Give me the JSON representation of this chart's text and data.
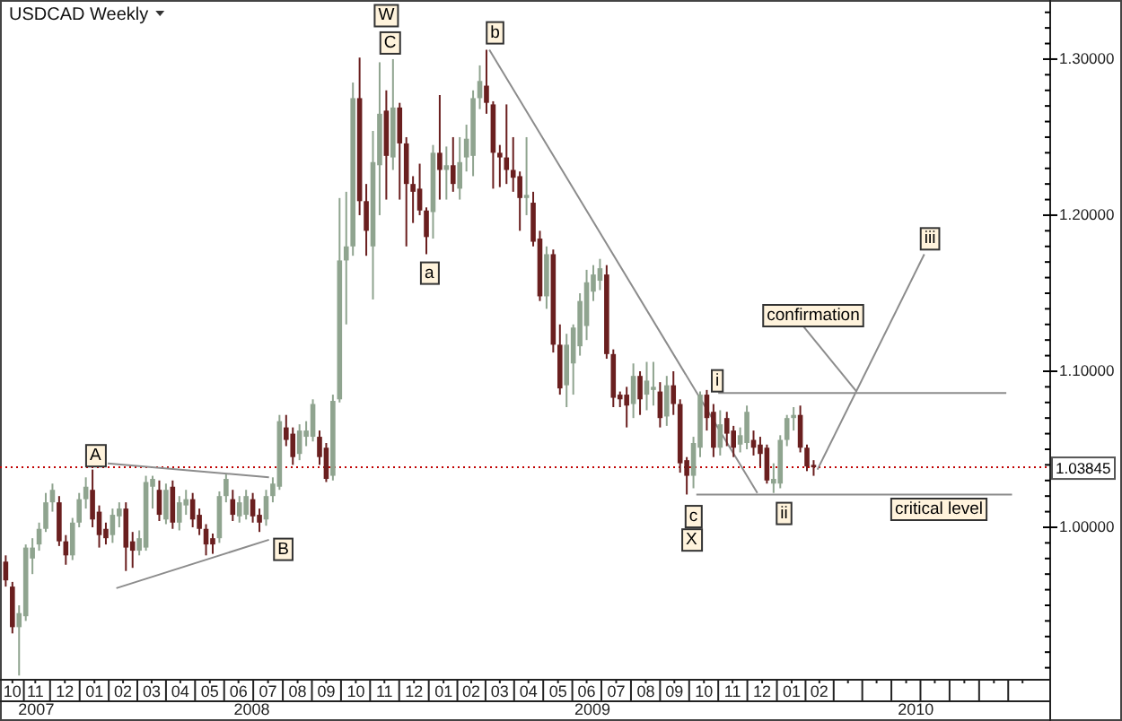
{
  "chart_data": {
    "type": "candlestick",
    "title": "USDCAD Weekly",
    "x": [
      "2007-10-15",
      "2007-10-22",
      "2007-10-29",
      "2007-11-05",
      "2007-11-12",
      "2007-11-19",
      "2007-11-26",
      "2007-12-03",
      "2007-12-10",
      "2007-12-17",
      "2007-12-24",
      "2007-12-31",
      "2008-01-07",
      "2008-01-14",
      "2008-01-21",
      "2008-01-28",
      "2008-02-04",
      "2008-02-11",
      "2008-02-18",
      "2008-02-25",
      "2008-03-03",
      "2008-03-10",
      "2008-03-17",
      "2008-03-24",
      "2008-03-31",
      "2008-04-07",
      "2008-04-14",
      "2008-04-21",
      "2008-04-28",
      "2008-05-05",
      "2008-05-12",
      "2008-05-19",
      "2008-05-26",
      "2008-06-02",
      "2008-06-09",
      "2008-06-16",
      "2008-06-23",
      "2008-06-30",
      "2008-07-07",
      "2008-07-14",
      "2008-07-21",
      "2008-07-28",
      "2008-08-04",
      "2008-08-11",
      "2008-08-18",
      "2008-08-25",
      "2008-09-01",
      "2008-09-08",
      "2008-09-15",
      "2008-09-22",
      "2008-09-29",
      "2008-10-06",
      "2008-10-13",
      "2008-10-20",
      "2008-10-27",
      "2008-11-03",
      "2008-11-10",
      "2008-11-17",
      "2008-11-24",
      "2008-12-01",
      "2008-12-08",
      "2008-12-15",
      "2008-12-22",
      "2008-12-29",
      "2009-01-05",
      "2009-01-12",
      "2009-01-19",
      "2009-01-26",
      "2009-02-02",
      "2009-02-09",
      "2009-02-16",
      "2009-02-23",
      "2009-03-02",
      "2009-03-09",
      "2009-03-16",
      "2009-03-23",
      "2009-03-30",
      "2009-04-06",
      "2009-04-13",
      "2009-04-20",
      "2009-04-27",
      "2009-05-04",
      "2009-05-11",
      "2009-05-18",
      "2009-05-25",
      "2009-06-01",
      "2009-06-08",
      "2009-06-15",
      "2009-06-22",
      "2009-06-29",
      "2009-07-06",
      "2009-07-13",
      "2009-07-20",
      "2009-07-27",
      "2009-08-03",
      "2009-08-10",
      "2009-08-17",
      "2009-08-24",
      "2009-08-31",
      "2009-09-07",
      "2009-09-14",
      "2009-09-21",
      "2009-09-28",
      "2009-10-05",
      "2009-10-12",
      "2009-10-19",
      "2009-10-26",
      "2009-11-02",
      "2009-11-09",
      "2009-11-16",
      "2009-11-23",
      "2009-11-30",
      "2009-12-07",
      "2009-12-14",
      "2009-12-21",
      "2009-12-28",
      "2010-01-04",
      "2010-01-11",
      "2010-01-18",
      "2010-01-25",
      "2010-02-01",
      "2010-02-08"
    ],
    "ohlc": [
      [
        0.978,
        0.982,
        0.962,
        0.966
      ],
      [
        0.962,
        0.965,
        0.932,
        0.936
      ],
      [
        0.936,
        0.95,
        0.905,
        0.945
      ],
      [
        0.943,
        0.989,
        0.94,
        0.987
      ],
      [
        0.98,
        0.993,
        0.97,
        0.987
      ],
      [
        0.989,
        1.003,
        0.985,
        0.999
      ],
      [
        0.999,
        1.022,
        0.997,
        1.016
      ],
      [
        1.016,
        1.028,
        1.01,
        1.024
      ],
      [
        1.016,
        1.02,
        0.988,
        0.991
      ],
      [
        0.991,
        0.995,
        0.976,
        0.982
      ],
      [
        0.982,
        1.006,
        0.979,
        1.003
      ],
      [
        1.003,
        1.022,
        1.0,
        1.018
      ],
      [
        1.018,
        1.032,
        1.012,
        1.026
      ],
      [
        1.024,
        1.037,
        1.0,
        1.005
      ],
      [
        1.01,
        1.014,
        0.987,
        0.995
      ],
      [
        0.999,
        1.003,
        0.989,
        0.993
      ],
      [
        0.995,
        1.012,
        0.99,
        1.008
      ],
      [
        1.007,
        1.016,
        1.0,
        1.012
      ],
      [
        1.012,
        1.016,
        0.972,
        0.987
      ],
      [
        0.991,
        0.997,
        0.974,
        0.985
      ],
      [
        0.985,
        0.998,
        0.982,
        0.993
      ],
      [
        0.987,
        1.033,
        0.985,
        1.029
      ],
      [
        1.026,
        1.033,
        1.012,
        1.031
      ],
      [
        1.024,
        1.03,
        1.004,
        1.008
      ],
      [
        1.005,
        1.028,
        1.002,
        1.024
      ],
      [
        1.026,
        1.03,
        0.999,
        1.003
      ],
      [
        1.003,
        1.02,
        0.998,
        1.016
      ],
      [
        1.014,
        1.024,
        1.008,
        1.018
      ],
      [
        1.018,
        1.022,
        1.0,
        1.005
      ],
      [
        1.008,
        1.012,
        0.995,
        0.999
      ],
      [
        0.999,
        1.002,
        0.982,
        0.989
      ],
      [
        0.993,
        0.996,
        0.983,
        0.989
      ],
      [
        0.993,
        1.023,
        0.99,
        1.02
      ],
      [
        1.02,
        1.034,
        1.016,
        1.031
      ],
      [
        1.018,
        1.024,
        1.004,
        1.008
      ],
      [
        1.007,
        1.02,
        1.003,
        1.016
      ],
      [
        1.008,
        1.024,
        1.005,
        1.02
      ],
      [
        1.018,
        1.022,
        1.003,
        1.007
      ],
      [
        1.008,
        1.012,
        0.997,
        1.003
      ],
      [
        1.005,
        1.024,
        1.001,
        1.02
      ],
      [
        1.02,
        1.032,
        1.016,
        1.028
      ],
      [
        1.026,
        1.072,
        1.024,
        1.068
      ],
      [
        1.064,
        1.072,
        1.052,
        1.056
      ],
      [
        1.06,
        1.064,
        1.04,
        1.045
      ],
      [
        1.047,
        1.066,
        1.043,
        1.062
      ],
      [
        1.058,
        1.068,
        1.052,
        1.062
      ],
      [
        1.058,
        1.082,
        1.055,
        1.079
      ],
      [
        1.058,
        1.062,
        1.04,
        1.045
      ],
      [
        1.051,
        1.054,
        1.029,
        1.031
      ],
      [
        1.033,
        1.085,
        1.03,
        1.081
      ],
      [
        1.082,
        1.211,
        1.08,
        1.171
      ],
      [
        1.171,
        1.215,
        1.13,
        1.18
      ],
      [
        1.18,
        1.285,
        1.174,
        1.275
      ],
      [
        1.275,
        1.301,
        1.2,
        1.209
      ],
      [
        1.209,
        1.22,
        1.174,
        1.19
      ],
      [
        1.18,
        1.254,
        1.146,
        1.234
      ],
      [
        1.232,
        1.298,
        1.2,
        1.265
      ],
      [
        1.267,
        1.28,
        1.21,
        1.238
      ],
      [
        1.237,
        1.3,
        1.229,
        1.269
      ],
      [
        1.269,
        1.272,
        1.21,
        1.246
      ],
      [
        1.246,
        1.25,
        1.18,
        1.22
      ],
      [
        1.22,
        1.225,
        1.195,
        1.215
      ],
      [
        1.217,
        1.233,
        1.2,
        1.203
      ],
      [
        1.203,
        1.205,
        1.175,
        1.186
      ],
      [
        1.202,
        1.245,
        1.185,
        1.24
      ],
      [
        1.24,
        1.277,
        1.21,
        1.229
      ],
      [
        1.229,
        1.244,
        1.21,
        1.232
      ],
      [
        1.232,
        1.25,
        1.215,
        1.22
      ],
      [
        1.217,
        1.25,
        1.21,
        1.234
      ],
      [
        1.237,
        1.258,
        1.228,
        1.249
      ],
      [
        1.238,
        1.28,
        1.225,
        1.275
      ],
      [
        1.275,
        1.296,
        1.268,
        1.286
      ],
      [
        1.283,
        1.306,
        1.265,
        1.272
      ],
      [
        1.271,
        1.273,
        1.217,
        1.24
      ],
      [
        1.24,
        1.245,
        1.218,
        1.237
      ],
      [
        1.237,
        1.271,
        1.22,
        1.229
      ],
      [
        1.229,
        1.25,
        1.215,
        1.224
      ],
      [
        1.225,
        1.228,
        1.19,
        1.211
      ],
      [
        1.211,
        1.25,
        1.2,
        1.213
      ],
      [
        1.208,
        1.215,
        1.18,
        1.183
      ],
      [
        1.185,
        1.19,
        1.145,
        1.148
      ],
      [
        1.148,
        1.18,
        1.14,
        1.175
      ],
      [
        1.175,
        1.178,
        1.112,
        1.117
      ],
      [
        1.117,
        1.13,
        1.085,
        1.089
      ],
      [
        1.091,
        1.124,
        1.077,
        1.117
      ],
      [
        1.105,
        1.13,
        1.085,
        1.128
      ],
      [
        1.116,
        1.15,
        1.11,
        1.145
      ],
      [
        1.129,
        1.165,
        1.12,
        1.157
      ],
      [
        1.151,
        1.168,
        1.145,
        1.162
      ],
      [
        1.158,
        1.172,
        1.152,
        1.166
      ],
      [
        1.162,
        1.168,
        1.108,
        1.111
      ],
      [
        1.111,
        1.114,
        1.077,
        1.083
      ],
      [
        1.085,
        1.087,
        1.077,
        1.082
      ],
      [
        1.085,
        1.09,
        1.064,
        1.078
      ],
      [
        1.079,
        1.105,
        1.07,
        1.097
      ],
      [
        1.097,
        1.1,
        1.072,
        1.082
      ],
      [
        1.085,
        1.106,
        1.075,
        1.094
      ],
      [
        1.088,
        1.106,
        1.078,
        1.09
      ],
      [
        1.087,
        1.093,
        1.064,
        1.07
      ],
      [
        1.071,
        1.097,
        1.065,
        1.091
      ],
      [
        1.091,
        1.1,
        1.072,
        1.079
      ],
      [
        1.079,
        1.082,
        1.035,
        1.041
      ],
      [
        1.043,
        1.045,
        1.021,
        1.033
      ],
      [
        1.033,
        1.058,
        1.025,
        1.054
      ],
      [
        1.051,
        1.087,
        1.045,
        1.085
      ],
      [
        1.085,
        1.088,
        1.062,
        1.07
      ],
      [
        1.074,
        1.079,
        1.045,
        1.051
      ],
      [
        1.051,
        1.075,
        1.046,
        1.066
      ],
      [
        1.07,
        1.074,
        1.052,
        1.06
      ],
      [
        1.062,
        1.065,
        1.045,
        1.051
      ],
      [
        1.053,
        1.064,
        1.048,
        1.059
      ],
      [
        1.054,
        1.078,
        1.05,
        1.074
      ],
      [
        1.056,
        1.062,
        1.046,
        1.051
      ],
      [
        1.053,
        1.058,
        1.039,
        1.047
      ],
      [
        1.051,
        1.053,
        1.028,
        1.03
      ],
      [
        1.028,
        1.041,
        1.022,
        1.031
      ],
      [
        1.028,
        1.059,
        1.025,
        1.056
      ],
      [
        1.056,
        1.072,
        1.052,
        1.07
      ],
      [
        1.07,
        1.077,
        1.062,
        1.072
      ],
      [
        1.072,
        1.078,
        1.048,
        1.051
      ],
      [
        1.051,
        1.053,
        1.036,
        1.039
      ],
      [
        1.04,
        1.043,
        1.033,
        1.03845
      ]
    ],
    "colors": [
      "#6a1f1f",
      "#6a1f1f",
      "#8fa48f",
      "#8fa48f",
      "#8fa48f",
      "#8fa48f",
      "#8fa48f",
      "#8fa48f",
      "#6a1f1f",
      "#6a1f1f",
      "#8fa48f",
      "#8fa48f",
      "#8fa48f",
      "#6a1f1f",
      "#6a1f1f",
      "#6a1f1f",
      "#8fa48f",
      "#8fa48f",
      "#6a1f1f",
      "#6a1f1f",
      "#8fa48f",
      "#8fa48f",
      "#8fa48f",
      "#6a1f1f",
      "#8fa48f",
      "#6a1f1f",
      "#8fa48f",
      "#8fa48f",
      "#6a1f1f",
      "#6a1f1f",
      "#6a1f1f",
      "#6a1f1f",
      "#8fa48f",
      "#8fa48f",
      "#6a1f1f",
      "#8fa48f",
      "#8fa48f",
      "#6a1f1f",
      "#6a1f1f",
      "#8fa48f",
      "#8fa48f",
      "#8fa48f",
      "#6a1f1f",
      "#6a1f1f",
      "#8fa48f",
      "#8fa48f",
      "#8fa48f",
      "#6a1f1f",
      "#6a1f1f",
      "#8fa48f",
      "#8fa48f",
      "#8fa48f",
      "#8fa48f",
      "#6a1f1f",
      "#6a1f1f",
      "#8fa48f",
      "#8fa48f",
      "#6a1f1f",
      "#8fa48f",
      "#6a1f1f",
      "#6a1f1f",
      "#6a1f1f",
      "#6a1f1f",
      "#6a1f1f",
      "#8fa48f",
      "#6a1f1f",
      "#8fa48f",
      "#6a1f1f",
      "#8fa48f",
      "#8fa48f",
      "#8fa48f",
      "#8fa48f",
      "#6a1f1f",
      "#6a1f1f",
      "#6a1f1f",
      "#6a1f1f",
      "#6a1f1f",
      "#6a1f1f",
      "#8fa48f",
      "#6a1f1f",
      "#6a1f1f",
      "#8fa48f",
      "#6a1f1f",
      "#6a1f1f",
      "#8fa48f",
      "#8fa48f",
      "#8fa48f",
      "#8fa48f",
      "#8fa48f",
      "#8fa48f",
      "#6a1f1f",
      "#6a1f1f",
      "#6a1f1f",
      "#6a1f1f",
      "#8fa48f",
      "#6a1f1f",
      "#8fa48f",
      "#8fa48f",
      "#6a1f1f",
      "#8fa48f",
      "#6a1f1f",
      "#6a1f1f",
      "#6a1f1f",
      "#8fa48f",
      "#8fa48f",
      "#6a1f1f",
      "#6a1f1f",
      "#8fa48f",
      "#6a1f1f",
      "#6a1f1f",
      "#8fa48f",
      "#8fa48f",
      "#6a1f1f",
      "#6a1f1f",
      "#6a1f1f",
      "#8fa48f",
      "#8fa48f",
      "#8fa48f",
      "#8fa48f",
      "#6a1f1f",
      "#6a1f1f",
      "#6a1f1f"
    ],
    "series": [
      {
        "type": "line",
        "color": "#8c8c8c",
        "x": [
          "2008-01-30",
          "2008-07-17"
        ],
        "values": [
          1.041,
          1.032
        ]
      },
      {
        "type": "line",
        "color": "#8c8c8c",
        "x": [
          "2008-02-08",
          "2008-07-17"
        ],
        "values": [
          0.961,
          0.992
        ]
      },
      {
        "type": "line",
        "color": "#8c8c8c",
        "x": [
          "2009-03-05",
          "2009-12-11"
        ],
        "values": [
          1.306,
          1.022
        ]
      },
      {
        "type": "line",
        "color": "#8c8c8c",
        "x": [
          "2009-10-31",
          "2010-08-29"
        ],
        "values": [
          1.086,
          1.086
        ]
      },
      {
        "type": "line",
        "color": "#8c8c8c",
        "x": [
          "2009-10-08",
          "2010-09-04"
        ],
        "values": [
          1.021,
          1.021
        ]
      },
      {
        "type": "line",
        "color": "#8c8c8c",
        "x": [
          "2010-02-12",
          "2010-06-04"
        ],
        "values": [
          1.037,
          1.175
        ]
      },
      {
        "type": "line",
        "color": "#8c8c8c",
        "x": [
          "2010-01-28",
          "2010-03-25"
        ],
        "values": [
          1.129,
          1.087
        ]
      }
    ],
    "annotations": [
      {
        "text": "A",
        "x": "2008-01-17",
        "y": 1.047
      },
      {
        "text": "B",
        "x": "2008-08-01",
        "y": 0.987
      },
      {
        "text": "W",
        "x": "2008-11-17",
        "y": 1.329
      },
      {
        "text": "C",
        "x": "2008-11-21",
        "y": 1.3115
      },
      {
        "text": "a",
        "x": "2009-01-01",
        "y": 1.164
      },
      {
        "text": "b",
        "x": "2009-03-11",
        "y": 1.318
      },
      {
        "text": "i",
        "x": "2009-10-30",
        "y": 1.095
      },
      {
        "text": "c",
        "x": "2009-10-05",
        "y": 1.008
      },
      {
        "text": "X",
        "x": "2009-10-03",
        "y": 0.993
      },
      {
        "text": "ii",
        "x": "2010-01-08",
        "y": 1.01
      },
      {
        "text": "iii",
        "x": "2010-06-10",
        "y": 1.186
      },
      "confirmation",
      "critical level"
    ],
    "ref_lines": [
      {
        "axis": "y",
        "value": 1.03845,
        "label": "1.03845",
        "color": "#c00000",
        "line_style": "dotted"
      }
    ],
    "xlim": [
      "2007-10-09",
      "2010-10-14"
    ],
    "xticks": [
      {
        "value": "2007-10-22",
        "label": "10"
      },
      {
        "value": "2007-11-15",
        "label": "11"
      },
      {
        "value": "2007-12-16",
        "label": "12"
      },
      {
        "value": "2008-01-16",
        "label": "01"
      },
      {
        "value": "2008-02-15",
        "label": "02"
      },
      {
        "value": "2008-03-16",
        "label": "03"
      },
      {
        "value": "2008-04-15",
        "label": "04"
      },
      {
        "value": "2008-05-16",
        "label": "05"
      },
      {
        "value": "2008-06-15",
        "label": "06"
      },
      {
        "value": "2008-07-16",
        "label": "07"
      },
      {
        "value": "2008-08-16",
        "label": "08"
      },
      {
        "value": "2008-09-15",
        "label": "09"
      },
      {
        "value": "2008-10-16",
        "label": "10"
      },
      {
        "value": "2008-11-15",
        "label": "11"
      },
      {
        "value": "2008-12-16",
        "label": "12"
      },
      {
        "value": "2009-01-16",
        "label": "01"
      },
      {
        "value": "2009-02-14",
        "label": "02"
      },
      {
        "value": "2009-03-16",
        "label": "03"
      },
      {
        "value": "2009-04-15",
        "label": "04"
      },
      {
        "value": "2009-05-16",
        "label": "05"
      },
      {
        "value": "2009-06-15",
        "label": "06"
      },
      {
        "value": "2009-07-16",
        "label": "07"
      },
      {
        "value": "2009-08-16",
        "label": "08"
      },
      {
        "value": "2009-09-15",
        "label": "09"
      },
      {
        "value": "2009-10-16",
        "label": "10"
      },
      {
        "value": "2009-11-15",
        "label": "11"
      },
      {
        "value": "2009-12-16",
        "label": "12"
      },
      {
        "value": "2010-01-16",
        "label": "01"
      },
      {
        "value": "2010-02-14",
        "label": "02"
      },
      {
        "value": "2010-03-16",
        "label": null
      },
      {
        "value": "2010-04-15",
        "label": null
      },
      {
        "value": "2010-05-16",
        "label": null
      },
      {
        "value": "2010-06-15",
        "label": null
      },
      {
        "value": "2010-07-16",
        "label": null
      },
      {
        "value": "2010-08-16",
        "label": null
      },
      {
        "value": "2010-09-15",
        "label": null
      }
    ],
    "x2lim": [
      "2007-10-09",
      "2010-10-14"
    ],
    "x2ticks": [
      {
        "value": "2007-11-16",
        "label": "2007"
      },
      {
        "value": "2008-06-29",
        "label": "2008"
      },
      {
        "value": "2009-06-21",
        "label": "2009"
      },
      {
        "value": "2010-05-26",
        "label": "2010"
      }
    ],
    "ylim": [
      0.9023,
      1.3356
    ],
    "yticks": [
      {
        "value": 0.91,
        "label": null
      },
      {
        "value": 0.92,
        "label": null
      },
      {
        "value": 0.93,
        "label": null
      },
      {
        "value": 0.94,
        "label": null
      },
      {
        "value": 0.95,
        "label": null
      },
      {
        "value": 0.96,
        "label": null
      },
      {
        "value": 0.97,
        "label": null
      },
      {
        "value": 0.98,
        "label": null
      },
      {
        "value": 0.99,
        "label": null
      },
      {
        "value": 1.0,
        "label": "1.00000"
      },
      {
        "value": 1.01,
        "label": null
      },
      {
        "value": 1.02,
        "label": null
      },
      {
        "value": 1.03,
        "label": null
      },
      {
        "value": 1.04,
        "label": null
      },
      {
        "value": 1.05,
        "label": null
      },
      {
        "value": 1.06,
        "label": null
      },
      {
        "value": 1.07,
        "label": null
      },
      {
        "value": 1.08,
        "label": null
      },
      {
        "value": 1.09,
        "label": null
      },
      {
        "value": 1.1,
        "label": "1.10000"
      },
      {
        "value": 1.11,
        "label": null
      },
      {
        "value": 1.12,
        "label": null
      },
      {
        "value": 1.13,
        "label": null
      },
      {
        "value": 1.14,
        "label": null
      },
      {
        "value": 1.15,
        "label": null
      },
      {
        "value": 1.16,
        "label": null
      },
      {
        "value": 1.17,
        "label": null
      },
      {
        "value": 1.18,
        "label": null
      },
      {
        "value": 1.19,
        "label": null
      },
      {
        "value": 1.2,
        "label": "1.20000"
      },
      {
        "value": 1.21,
        "label": null
      },
      {
        "value": 1.22,
        "label": null
      },
      {
        "value": 1.23,
        "label": null
      },
      {
        "value": 1.24,
        "label": null
      },
      {
        "value": 1.25,
        "label": null
      },
      {
        "value": 1.26,
        "label": null
      },
      {
        "value": 1.27,
        "label": null
      },
      {
        "value": 1.28,
        "label": null
      },
      {
        "value": 1.29,
        "label": null
      },
      {
        "value": 1.3,
        "label": "1.30000"
      },
      {
        "value": 1.31,
        "label": null
      },
      {
        "value": 1.32,
        "label": null
      },
      {
        "value": 1.33,
        "label": null
      }
    ]
  }
}
